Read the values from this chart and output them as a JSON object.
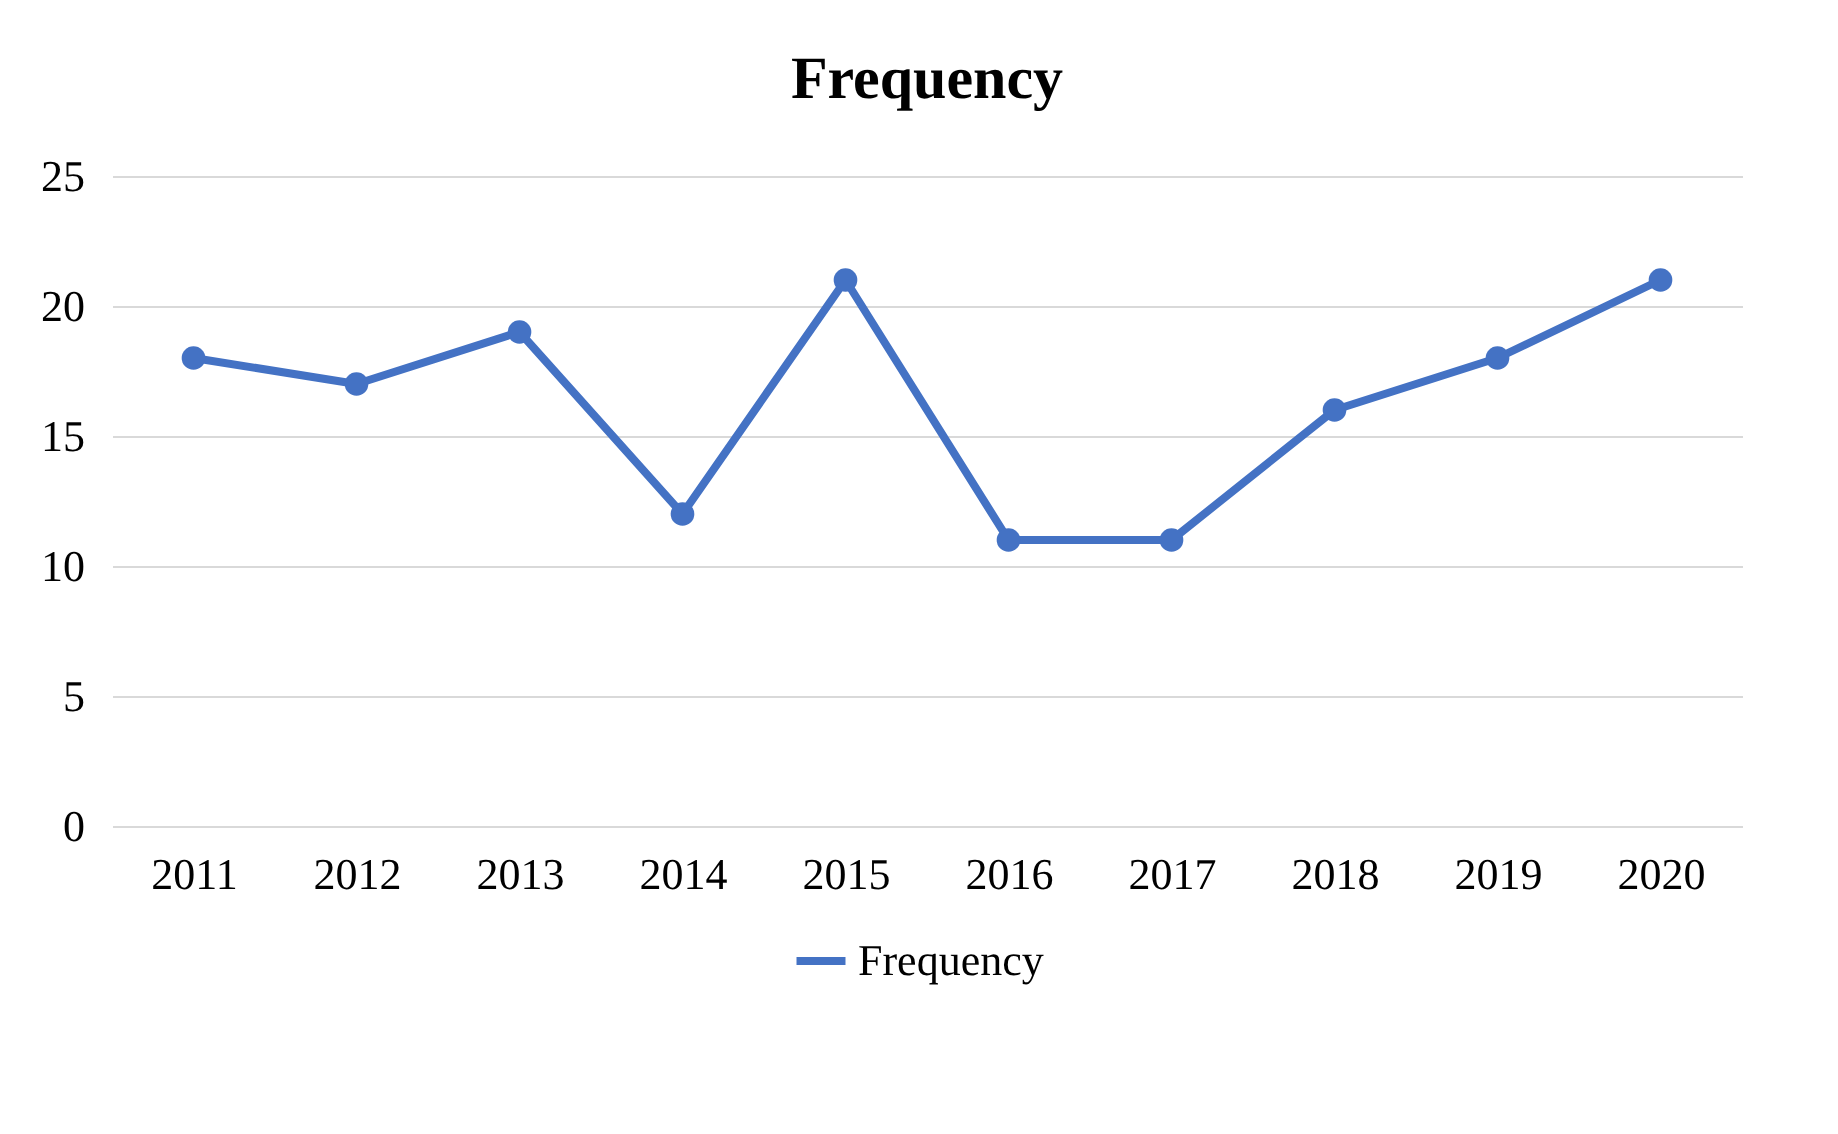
{
  "chart_data": {
    "type": "line",
    "title": "Frequency",
    "categories": [
      "2011",
      "2012",
      "2013",
      "2014",
      "2015",
      "2016",
      "2017",
      "2018",
      "2019",
      "2020"
    ],
    "series": [
      {
        "name": "Frequency",
        "color": "#4472c4",
        "values": [
          18,
          17,
          19,
          12,
          21,
          11,
          11,
          16,
          18,
          21
        ]
      }
    ],
    "ylim": [
      0,
      25
    ],
    "yticks": [
      0,
      5,
      10,
      15,
      20,
      25
    ],
    "grid": "y",
    "legend": "bottom",
    "marker": "circle",
    "line_style": "solid"
  }
}
